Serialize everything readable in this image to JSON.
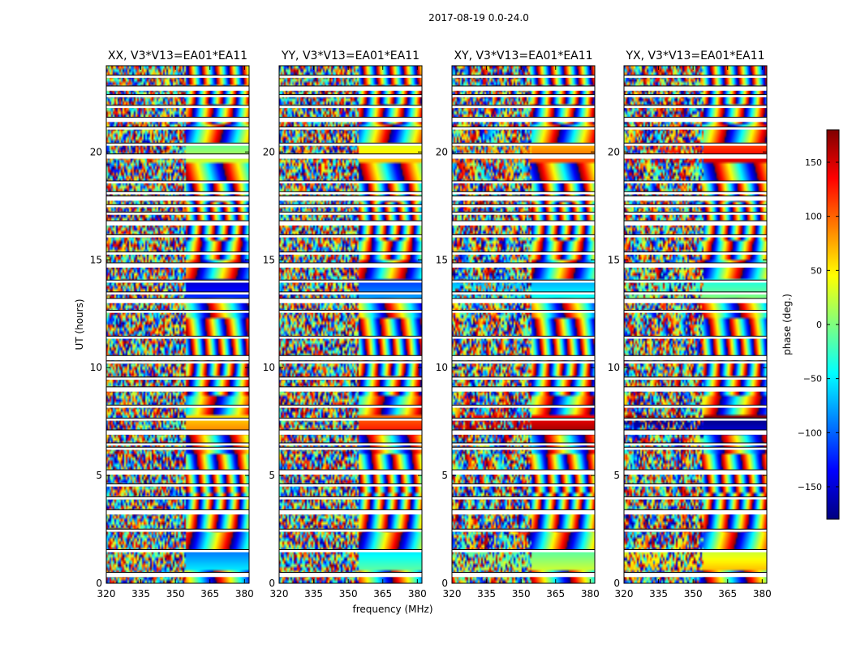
{
  "figure": {
    "suptitle": "2017-08-19 0.0-24.0",
    "xlabel": "frequency (MHz)",
    "ylabel": "UT (hours)"
  },
  "chart_data": {
    "type": "heatmap",
    "xlim": [
      320,
      382
    ],
    "ylim": [
      0,
      24
    ],
    "x_ticks": [
      320,
      335,
      350,
      365,
      380
    ],
    "y_ticks": [
      0,
      5,
      10,
      15,
      20
    ],
    "panels": [
      {
        "title": "XX, V3*V13=EA01*EA11"
      },
      {
        "title": "YY, V3*V13=EA01*EA11"
      },
      {
        "title": "XY, V3*V13=EA01*EA11"
      },
      {
        "title": "YX, V3*V13=EA01*EA11"
      }
    ],
    "flagged_ut_hours": [
      0.4,
      1.5,
      2.45,
      3.3,
      3.95,
      4.55,
      5.15,
      6.25,
      6.45,
      7.0,
      7.6,
      8.2,
      9.0,
      9.5,
      10.25,
      10.45,
      11.4,
      12.6,
      13.1,
      13.45,
      14.0,
      14.75,
      15.3,
      16.1,
      16.7,
      17.15,
      17.5,
      17.85,
      18.1,
      18.6,
      19.8,
      20.35,
      21.1,
      21.5,
      22.1,
      22.6,
      22.95,
      23.5
    ],
    "colorbar": {
      "label": "phase (deg.)",
      "range": [
        -180,
        180
      ],
      "ticks": [
        150,
        100,
        50,
        0,
        -50,
        -100,
        -150
      ],
      "colormap": "jet"
    }
  }
}
